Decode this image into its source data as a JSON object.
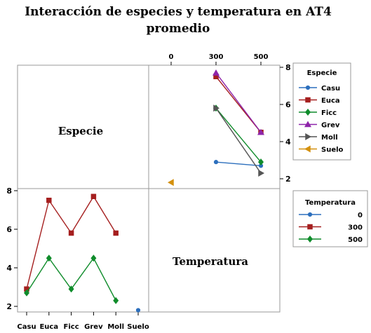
{
  "chart_data": {
    "type": "line",
    "title": [
      "Interacción de especies y temperatura en AT4",
      "promedio"
    ],
    "diagonal_labels": {
      "top_left": "Especie",
      "bottom_right": "Temperatura"
    },
    "ylim": [
      1.5,
      8.3
    ],
    "yticks": [
      2,
      4,
      6,
      8
    ],
    "grid": false,
    "panels": [
      {
        "position": "top-right",
        "xtick_labels": [
          "0",
          "300",
          "500"
        ],
        "legend_title": "Especie",
        "legend_placement": "right",
        "series": [
          {
            "name": "Casu",
            "color": "#2c6fbd",
            "marker": "circle",
            "x": [
              "300",
              "500"
            ],
            "y": [
              2.9,
              2.7
            ]
          },
          {
            "name": "Euca",
            "color": "#a51f1f",
            "marker": "square",
            "x": [
              "300",
              "500"
            ],
            "y": [
              7.5,
              4.5
            ]
          },
          {
            "name": "Ficc",
            "color": "#0f8c2b",
            "marker": "diamond",
            "x": [
              "300",
              "500"
            ],
            "y": [
              5.8,
              2.9
            ]
          },
          {
            "name": "Grev",
            "color": "#8e24aa",
            "marker": "triangle-up",
            "x": [
              "300",
              "500"
            ],
            "y": [
              7.7,
              4.5
            ]
          },
          {
            "name": "Moll",
            "color": "#555555",
            "marker": "triangle-right",
            "x": [
              "300",
              "500"
            ],
            "y": [
              5.8,
              2.3
            ]
          },
          {
            "name": "Suelo",
            "color": "#d4900d",
            "marker": "triangle-left",
            "x": [
              "0"
            ],
            "y": [
              1.8
            ]
          }
        ]
      },
      {
        "position": "bottom-left",
        "xtick_labels": [
          "Casu",
          "Euca",
          "Ficc",
          "Grev",
          "Moll",
          "Suelo"
        ],
        "legend_title": "Temperatura",
        "legend_placement": "right",
        "series": [
          {
            "name": "0",
            "color": "#2c6fbd",
            "marker": "circle",
            "x": [
              "Suelo"
            ],
            "y": [
              1.8
            ]
          },
          {
            "name": "300",
            "color": "#a51f1f",
            "marker": "square",
            "x": [
              "Casu",
              "Euca",
              "Ficc",
              "Grev",
              "Moll"
            ],
            "y": [
              2.9,
              7.5,
              5.8,
              7.7,
              5.8
            ]
          },
          {
            "name": "500",
            "color": "#0f8c2b",
            "marker": "diamond",
            "x": [
              "Casu",
              "Euca",
              "Ficc",
              "Grev",
              "Moll"
            ],
            "y": [
              2.7,
              4.5,
              2.9,
              4.5,
              2.3
            ]
          }
        ]
      }
    ]
  }
}
